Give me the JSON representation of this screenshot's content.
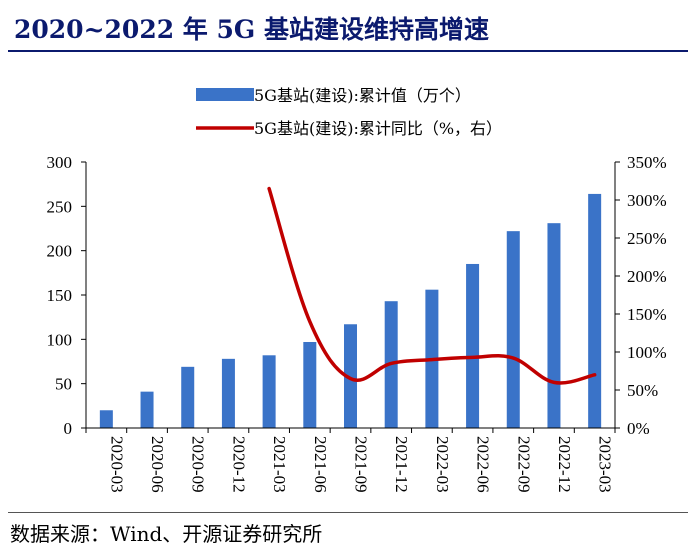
{
  "title": "2020~2022 年 5G 基站建设维持高增速",
  "source": "数据来源：Wind、开源证券研究所",
  "chart_data": {
    "type": "bar",
    "categories": [
      "2020-03",
      "2020-06",
      "2020-09",
      "2020-12",
      "2021-03",
      "2021-06",
      "2021-09",
      "2021-12",
      "2022-03",
      "2022-06",
      "2022-09",
      "2022-12",
      "2023-03"
    ],
    "series": [
      {
        "name": "5G基站(建设):累计值（万个）",
        "type": "bar",
        "axis": "left",
        "color": "#3a73c8",
        "values": [
          20,
          41,
          69,
          78,
          82,
          97,
          117,
          143,
          156,
          185,
          222,
          231,
          264
        ]
      },
      {
        "name": "5G基站(建设):累计同比（%，右）",
        "type": "line",
        "axis": "right",
        "color": "#c00000",
        "values": [
          null,
          null,
          null,
          null,
          315,
          140,
          65,
          85,
          90,
          93,
          92,
          60,
          70
        ]
      }
    ],
    "yleft": {
      "ylim": [
        0,
        300
      ],
      "ticks": [
        "0",
        "50",
        "100",
        "150",
        "200",
        "250",
        "300"
      ]
    },
    "yright": {
      "ylim": [
        0,
        350
      ],
      "ticks": [
        "0%",
        "50%",
        "100%",
        "150%",
        "200%",
        "250%",
        "300%",
        "350%"
      ]
    },
    "legend_position": "top",
    "grid": false
  }
}
